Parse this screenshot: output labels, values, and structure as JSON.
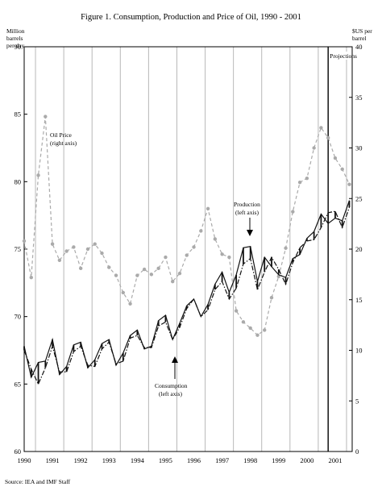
{
  "chart_data": {
    "type": "line",
    "title": "Figure 1. Consumption, Production and Price of Oil, 1990 - 2001",
    "source": "Source: IEA and IMF Staff",
    "left_axis": {
      "label": [
        "Million",
        "barrels",
        "per day"
      ],
      "ylim": [
        60,
        90
      ],
      "ticks": [
        60,
        65,
        70,
        75,
        80,
        85,
        90
      ]
    },
    "right_axis": {
      "label": [
        "$US per",
        "barrel"
      ],
      "ylim": [
        0,
        40
      ],
      "ticks": [
        0,
        5,
        10,
        15,
        20,
        25,
        30,
        35,
        40
      ]
    },
    "x_axis": {
      "xlim": [
        1990,
        2001.6
      ],
      "ticks": [
        1990,
        1991,
        1992,
        1993,
        1994,
        1995,
        1996,
        1997,
        1998,
        1999,
        2000,
        2001
      ],
      "tick_labels": [
        "1990",
        "1991",
        "1992",
        "1993",
        "1994",
        "1995",
        "1996",
        "1997",
        "1998",
        "1999",
        "2000",
        "2001"
      ]
    },
    "projection": {
      "start": 2000.75,
      "label": "Projections"
    },
    "grid": "vertical lines at each year",
    "series": [
      {
        "name": "Oil Price (right axis)",
        "axis": "right",
        "color": "#aaaaaa",
        "style": "dashed-markers",
        "x": [
          1990.0,
          1990.25,
          1990.5,
          1990.75,
          1991.0,
          1991.25,
          1991.5,
          1991.75,
          1992.0,
          1992.25,
          1992.5,
          1992.75,
          1993.0,
          1993.25,
          1993.5,
          1993.75,
          1994.0,
          1994.25,
          1994.5,
          1994.75,
          1995.0,
          1995.25,
          1995.5,
          1995.75,
          1996.0,
          1996.25,
          1996.5,
          1996.75,
          1997.0,
          1997.25,
          1997.5,
          1997.75,
          1998.0,
          1998.25,
          1998.5,
          1998.75,
          1999.0,
          1999.25,
          1999.5,
          1999.75,
          2000.0,
          2000.25,
          2000.5,
          2000.75,
          2001.0,
          2001.25,
          2001.5
        ],
        "y": [
          20.8,
          17.2,
          27.3,
          33.1,
          20.5,
          18.9,
          19.8,
          20.2,
          18.1,
          20.0,
          20.5,
          19.6,
          18.2,
          17.4,
          15.7,
          14.6,
          17.4,
          18.0,
          17.5,
          18.1,
          19.2,
          16.8,
          17.6,
          19.4,
          20.2,
          21.8,
          24.0,
          21.0,
          19.5,
          19.2,
          13.9,
          12.8,
          12.2,
          11.5,
          12.0,
          15.2,
          17.3,
          20.1,
          23.7,
          26.6,
          27.0,
          30.0,
          32.0,
          31.0,
          29.0,
          27.9,
          26.4
        ]
      },
      {
        "name": "Production (left axis)",
        "axis": "left",
        "color": "#111111",
        "style": "solid",
        "x": [
          1990.0,
          1990.25,
          1990.5,
          1990.75,
          1991.0,
          1991.25,
          1991.5,
          1991.75,
          1992.0,
          1992.25,
          1992.5,
          1992.75,
          1993.0,
          1993.25,
          1993.5,
          1993.75,
          1994.0,
          1994.25,
          1994.5,
          1994.75,
          1995.0,
          1995.25,
          1995.5,
          1995.75,
          1996.0,
          1996.25,
          1996.5,
          1996.75,
          1997.0,
          1997.25,
          1997.5,
          1997.75,
          1998.0,
          1998.25,
          1998.5,
          1998.75,
          1999.0,
          1999.25,
          1999.5,
          1999.75,
          2000.0,
          2000.25,
          2000.5,
          2000.75,
          2001.0,
          2001.25,
          2001.5
        ],
        "y": [
          67.8,
          65.5,
          66.6,
          66.7,
          68.3,
          65.7,
          66.3,
          67.9,
          68.1,
          66.2,
          66.8,
          68.0,
          68.3,
          66.4,
          67.3,
          68.6,
          69.0,
          67.6,
          67.8,
          69.7,
          70.1,
          68.3,
          69.5,
          70.8,
          71.3,
          70.0,
          70.9,
          72.4,
          73.3,
          71.8,
          73.1,
          75.1,
          75.2,
          72.6,
          74.4,
          73.7,
          73.1,
          72.9,
          74.3,
          74.6,
          75.8,
          76.3,
          77.6,
          76.9,
          77.3,
          77.1,
          78.6
        ]
      },
      {
        "name": "Consumption (left axis)",
        "axis": "left",
        "color": "#111111",
        "style": "dash-dot",
        "x": [
          1990.0,
          1990.25,
          1990.5,
          1990.75,
          1991.0,
          1991.25,
          1991.5,
          1991.75,
          1992.0,
          1992.25,
          1992.5,
          1992.75,
          1993.0,
          1993.25,
          1993.5,
          1993.75,
          1994.0,
          1994.25,
          1994.5,
          1994.75,
          1995.0,
          1995.25,
          1995.5,
          1995.75,
          1996.0,
          1996.25,
          1996.5,
          1996.75,
          1997.0,
          1997.25,
          1997.5,
          1997.75,
          1998.0,
          1998.25,
          1998.5,
          1998.75,
          1999.0,
          1999.25,
          1999.5,
          1999.75,
          2000.0,
          2000.25,
          2000.5,
          2000.75,
          2001.0,
          2001.25,
          2001.5
        ],
        "y": [
          67.5,
          66.1,
          65.0,
          66.2,
          67.8,
          65.9,
          65.9,
          67.4,
          67.8,
          66.4,
          66.3,
          67.6,
          68.1,
          66.5,
          66.7,
          68.4,
          68.6,
          67.7,
          67.7,
          69.3,
          69.6,
          68.3,
          69.2,
          70.6,
          71.3,
          70.0,
          70.5,
          72.0,
          72.6,
          71.3,
          72.1,
          73.9,
          74.3,
          72.0,
          73.3,
          74.4,
          73.5,
          72.4,
          74.0,
          75.1,
          75.6,
          75.7,
          76.6,
          77.7,
          77.8,
          76.6,
          78.1
        ]
      }
    ],
    "annotations": [
      {
        "text": [
          "Oil Price",
          "(right axis)"
        ],
        "series": "Oil Price (right axis)"
      },
      {
        "text": [
          "Production",
          "(left axis)"
        ],
        "series": "Production (left axis)"
      },
      {
        "text": [
          "Consumption",
          "(left axis)"
        ],
        "series": "Consumption (left axis)"
      }
    ]
  }
}
